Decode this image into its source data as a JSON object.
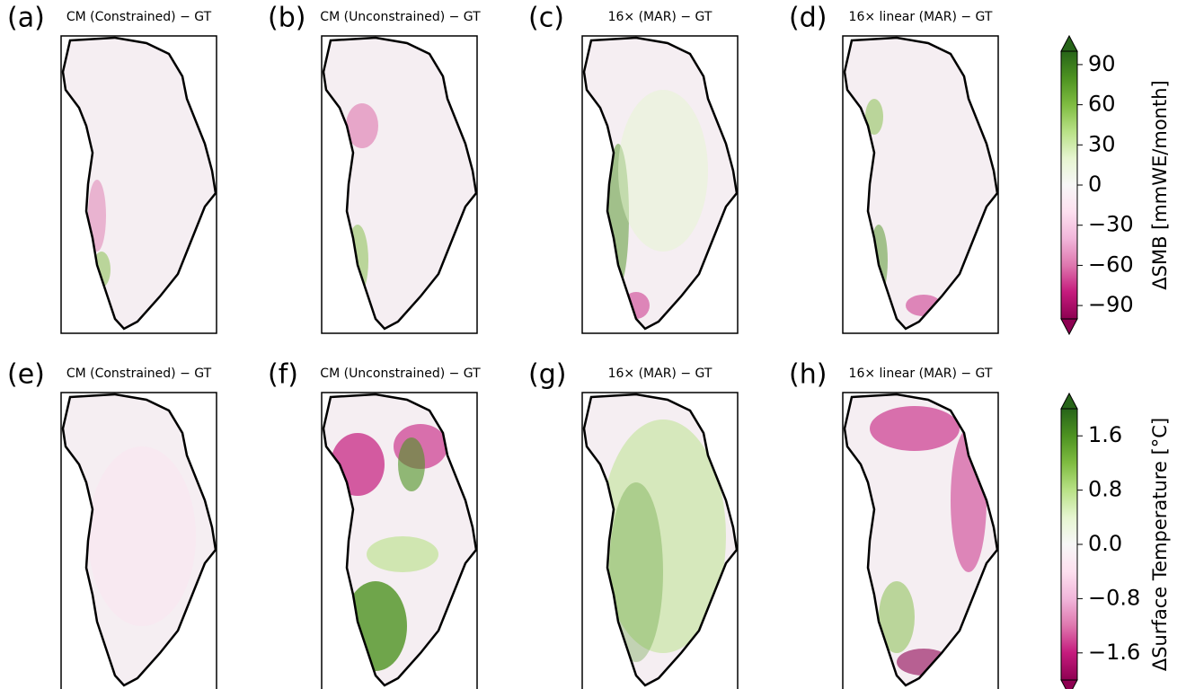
{
  "panels": [
    {
      "label": "(a)",
      "title": "CM (Constrained) − GT"
    },
    {
      "label": "(b)",
      "title": "CM (Unconstrained) − GT"
    },
    {
      "label": "(c)",
      "title": "16× (MAR) − GT"
    },
    {
      "label": "(d)",
      "title": "16× linear (MAR) − GT"
    },
    {
      "label": "(e)",
      "title": "CM (Constrained) − GT"
    },
    {
      "label": "(f)",
      "title": "CM (Unconstrained) − GT"
    },
    {
      "label": "(g)",
      "title": "16× (MAR) − GT"
    },
    {
      "label": "(h)",
      "title": "16× linear (MAR) − GT"
    }
  ],
  "colorbars": [
    {
      "label": "ΔSMB [mmWE/month]",
      "lim": [
        -100,
        100
      ],
      "ticks": [
        90,
        60,
        30,
        0,
        {
          "value": -30,
          "label": "−30"
        },
        {
          "value": -60,
          "label": "−60"
        },
        {
          "value": -90,
          "label": "−90"
        }
      ]
    },
    {
      "label": "ΔSurface Temperature [°C]",
      "lim": [
        -2,
        2
      ],
      "ticks": [
        1.6,
        0.8,
        {
          "value": 0,
          "label": "0.0"
        },
        {
          "value": -0.8,
          "label": "−0.8"
        },
        {
          "value": -1.6,
          "label": "−1.6"
        }
      ]
    }
  ]
}
